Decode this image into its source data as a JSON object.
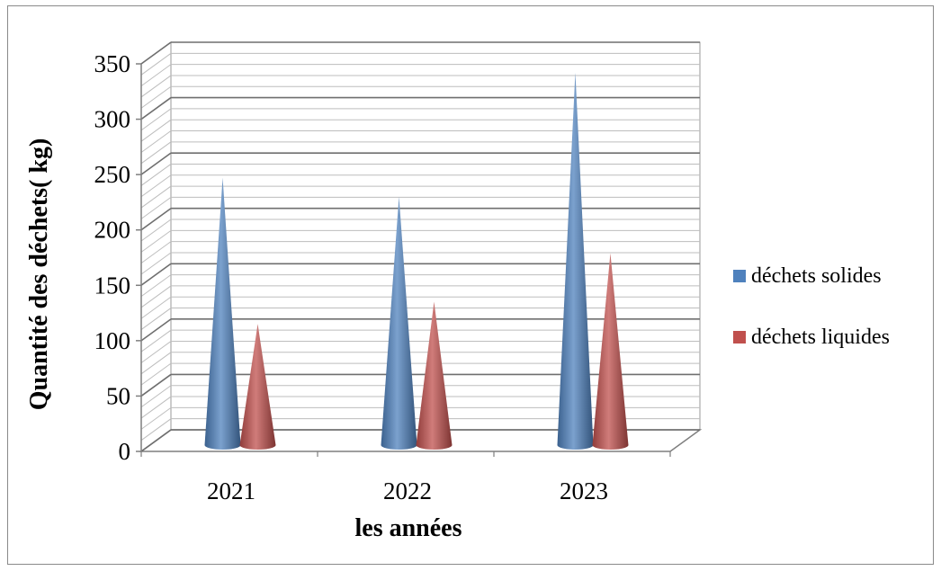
{
  "chart_data": {
    "type": "bar",
    "shape": "cone",
    "title": "",
    "xlabel": "les années",
    "ylabel": "Quantité des déchets( kg)",
    "categories": [
      "2021",
      "2022",
      "2023"
    ],
    "series": [
      {
        "name": "déchets solides",
        "values": [
          243,
          226,
          338
        ],
        "color": "#4f81bd"
      },
      {
        "name": "déchets liquides",
        "values": [
          111,
          131,
          175
        ],
        "color": "#c0504d"
      }
    ],
    "ylim": [
      0,
      350
    ],
    "yticks": [
      "0",
      "50",
      "100",
      "150",
      "200",
      "250",
      "300",
      "350"
    ],
    "grid": true,
    "legend_position": "right"
  }
}
